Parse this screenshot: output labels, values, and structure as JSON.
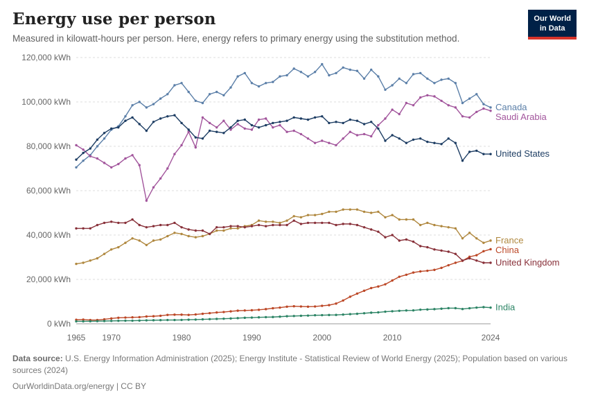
{
  "header": {
    "title": "Energy use per person",
    "subtitle": "Measured in kilowatt-hours per person. Here, energy refers to primary energy using the substitution method.",
    "logo": {
      "line1": "Our World",
      "line2": "in Data"
    }
  },
  "footer": {
    "source_label": "Data source:",
    "source_text": " U.S. Energy Information Administration (2025); Energy Institute - Statistical Review of World Energy (2025); Population based on various sources (2024)",
    "link_line": "OurWorldinData.org/energy | CC BY"
  },
  "chart_data": {
    "type": "line",
    "title": "Energy use per person",
    "xlabel": "",
    "ylabel": "kilowatt-hours per person",
    "unit": "kWh",
    "grid": "horizontal-dashed",
    "legend_position": "right-end-labels",
    "x_range": [
      1965,
      2024
    ],
    "ylim": [
      0,
      120000
    ],
    "yticks": [
      0,
      20000,
      40000,
      60000,
      80000,
      100000,
      120000
    ],
    "ytick_labels": [
      "0 kWh",
      "20,000 kWh",
      "40,000 kWh",
      "60,000 kWh",
      "80,000 kWh",
      "100,000 kWh",
      "120,000 kWh"
    ],
    "xticks": [
      1965,
      1970,
      1980,
      1990,
      2000,
      2010,
      2024
    ],
    "xtick_labels": [
      "1965",
      "1970",
      "1980",
      "1990",
      "2000",
      "2010",
      "2024"
    ],
    "series": [
      {
        "name": "Canada",
        "color": "#5b7fa8",
        "values": [
          70500,
          73500,
          76000,
          80000,
          83500,
          87500,
          89000,
          93500,
          98500,
          100000,
          97500,
          99000,
          101500,
          103500,
          107500,
          108500,
          104500,
          100500,
          99500,
          103500,
          104500,
          103000,
          106500,
          111500,
          113000,
          108500,
          107000,
          108500,
          109000,
          111500,
          112000,
          115000,
          113500,
          111500,
          113500,
          117000,
          112000,
          113000,
          115500,
          114500,
          114000,
          110500,
          114500,
          111500,
          105500,
          107500,
          110500,
          108500,
          112500,
          113000,
          110500,
          108500,
          110000,
          110500,
          108500,
          99500,
          101500,
          103500,
          99000,
          97500
        ]
      },
      {
        "name": "Saudi Arabia",
        "color": "#a2559c",
        "values": [
          80500,
          78500,
          75500,
          74500,
          72500,
          70500,
          72000,
          74500,
          76000,
          71500,
          55500,
          61500,
          65500,
          70000,
          76500,
          80500,
          86500,
          79500,
          93000,
          90500,
          88500,
          91500,
          87500,
          90000,
          88000,
          87500,
          92000,
          92500,
          88500,
          89500,
          86500,
          87000,
          85500,
          83500,
          81500,
          82500,
          81500,
          80500,
          83500,
          86500,
          85000,
          85500,
          84500,
          89500,
          92500,
          96500,
          94500,
          99500,
          98500,
          102000,
          103000,
          102500,
          100500,
          98500,
          97500,
          93500,
          93000,
          95500,
          97000,
          96000
        ]
      },
      {
        "name": "United States",
        "color": "#1d3d63",
        "values": [
          74000,
          77000,
          79000,
          83000,
          86000,
          88000,
          88500,
          91500,
          93000,
          90000,
          87000,
          91000,
          92500,
          93500,
          94000,
          90500,
          87500,
          84000,
          83500,
          87000,
          86500,
          86000,
          88500,
          91500,
          92000,
          89500,
          88500,
          89500,
          90500,
          91000,
          91500,
          93000,
          92500,
          92000,
          93000,
          93500,
          90500,
          91000,
          90500,
          92000,
          91500,
          90000,
          91000,
          88000,
          82500,
          85000,
          83500,
          81500,
          83000,
          83500,
          82000,
          81500,
          81000,
          83500,
          81500,
          73500,
          77500,
          78000,
          76500,
          76500
        ]
      },
      {
        "name": "France",
        "color": "#b0883f",
        "values": [
          27000,
          27500,
          28500,
          29500,
          31500,
          33500,
          34500,
          36500,
          38500,
          37500,
          35500,
          37500,
          38000,
          39500,
          41000,
          40500,
          39500,
          39000,
          39500,
          40500,
          42000,
          42000,
          43000,
          43000,
          44000,
          44500,
          46500,
          46000,
          46000,
          45500,
          46500,
          48500,
          48000,
          49000,
          49000,
          49500,
          50500,
          50500,
          51500,
          51500,
          51500,
          50500,
          50000,
          50500,
          48000,
          49000,
          47000,
          47000,
          47000,
          44500,
          45500,
          44500,
          44000,
          43500,
          43000,
          38500,
          41000,
          38500,
          36500,
          37500
        ]
      },
      {
        "name": "China",
        "color": "#bc4726",
        "values": [
          1800,
          1900,
          1700,
          1700,
          2000,
          2400,
          2700,
          2800,
          2900,
          3000,
          3300,
          3400,
          3600,
          4000,
          4100,
          4100,
          4000,
          4200,
          4500,
          4800,
          5100,
          5300,
          5600,
          5900,
          6000,
          6100,
          6300,
          6600,
          7000,
          7300,
          7700,
          7900,
          7800,
          7700,
          7800,
          8100,
          8400,
          9100,
          10500,
          12200,
          13600,
          14900,
          16100,
          16800,
          17800,
          19500,
          21200,
          22100,
          23100,
          23600,
          23900,
          24300,
          25200,
          26400,
          27500,
          28400,
          30200,
          30900,
          32700,
          33600
        ]
      },
      {
        "name": "United Kingdom",
        "color": "#883039",
        "values": [
          43000,
          43000,
          43000,
          44500,
          45500,
          46000,
          45500,
          45500,
          47000,
          44500,
          43500,
          44000,
          44500,
          44500,
          45500,
          43500,
          42500,
          42000,
          42000,
          40500,
          43500,
          43500,
          44000,
          44000,
          43500,
          44000,
          44500,
          44000,
          44500,
          44500,
          44500,
          46500,
          45000,
          45500,
          45500,
          45500,
          45500,
          44500,
          45000,
          45000,
          44500,
          43500,
          42500,
          41500,
          39000,
          40000,
          37500,
          38000,
          37000,
          35000,
          34500,
          33500,
          33000,
          32500,
          31500,
          28500,
          29500,
          28500,
          27500,
          27500
        ]
      },
      {
        "name": "India",
        "color": "#2c8465",
        "values": [
          1100,
          1100,
          1150,
          1200,
          1250,
          1300,
          1350,
          1400,
          1400,
          1450,
          1550,
          1600,
          1650,
          1700,
          1700,
          1750,
          1850,
          1900,
          2000,
          2100,
          2200,
          2300,
          2400,
          2550,
          2700,
          2800,
          2900,
          3000,
          3050,
          3200,
          3400,
          3500,
          3600,
          3700,
          3850,
          3900,
          3950,
          4000,
          4150,
          4350,
          4500,
          4750,
          5000,
          5150,
          5450,
          5650,
          5850,
          6000,
          6050,
          6350,
          6450,
          6600,
          6800,
          7050,
          7050,
          6650,
          7000,
          7300,
          7500,
          7300
        ]
      }
    ]
  }
}
